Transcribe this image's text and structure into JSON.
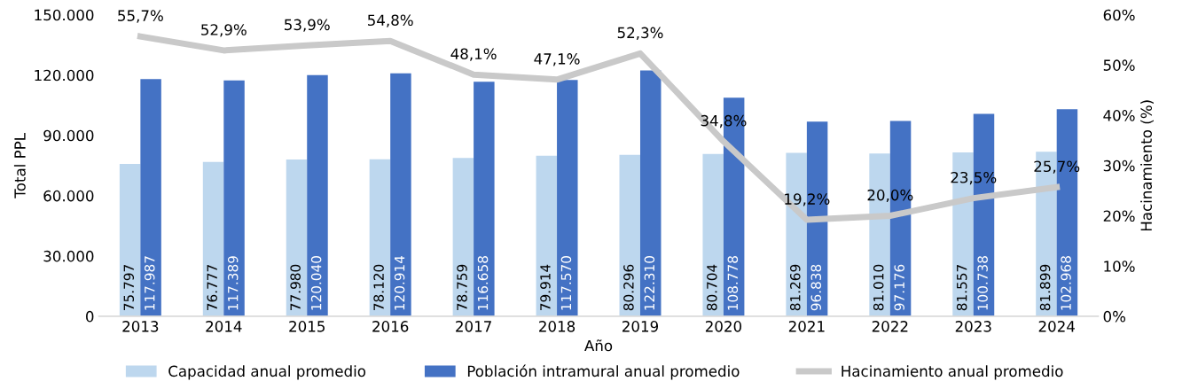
{
  "chart_data": {
    "type": "bar",
    "xlabel": "Año",
    "ylabel": "Total PPL",
    "y2label": "Hacinamiento (%)",
    "categories": [
      "2013",
      "2014",
      "2015",
      "2016",
      "2017",
      "2018",
      "2019",
      "2020",
      "2021",
      "2022",
      "2023",
      "2024"
    ],
    "series": [
      {
        "name": "Capacidad anual promedio",
        "color": "#bdd7ee",
        "values": [
          75797,
          76777,
          77980,
          78120,
          78759,
          79914,
          80296,
          80704,
          81269,
          81010,
          81557,
          81899
        ],
        "value_labels": [
          "75.797",
          "76.777",
          "77.980",
          "78.120",
          "78.759",
          "79.914",
          "80.296",
          "80.704",
          "81.269",
          "81.010",
          "81.557",
          "81.899"
        ]
      },
      {
        "name": "Población intramural anual promedio",
        "color": "#4472c4",
        "values": [
          117987,
          117389,
          120040,
          120914,
          116658,
          117570,
          122310,
          108778,
          96838,
          97176,
          100738,
          102968
        ],
        "value_labels": [
          "117.987",
          "117.389",
          "120.040",
          "120.914",
          "116.658",
          "117.570",
          "122.310",
          "108.778",
          "96.838",
          "97.176",
          "100.738",
          "102.968"
        ]
      },
      {
        "name": "Hacinamiento anual promedio",
        "type": "line",
        "axis": "y2",
        "color": "#c9c9c9",
        "values": [
          55.7,
          52.9,
          53.9,
          54.8,
          48.1,
          47.1,
          52.3,
          34.8,
          19.2,
          20.0,
          23.5,
          25.7
        ],
        "value_labels": [
          "55,7%",
          "52,9%",
          "53,9%",
          "54,8%",
          "48,1%",
          "47,1%",
          "52,3%",
          "34,8%",
          "19,2%",
          "20,0%",
          "23,5%",
          "25,7%"
        ]
      }
    ],
    "ylim": [
      0,
      150000
    ],
    "yticks": [
      {
        "value": 0,
        "label": "0"
      },
      {
        "value": 30000,
        "label": "30.000"
      },
      {
        "value": 60000,
        "label": "60.000"
      },
      {
        "value": 90000,
        "label": "90.000"
      },
      {
        "value": 120000,
        "label": "120.000"
      },
      {
        "value": 150000,
        "label": "150.000"
      }
    ],
    "y2lim": [
      0,
      60
    ],
    "y2ticks": [
      {
        "value": 0,
        "label": "0%"
      },
      {
        "value": 10,
        "label": "10%"
      },
      {
        "value": 20,
        "label": "20%"
      },
      {
        "value": 30,
        "label": "30%"
      },
      {
        "value": 40,
        "label": "40%"
      },
      {
        "value": 50,
        "label": "50%"
      },
      {
        "value": 60,
        "label": "60%"
      }
    ],
    "legend": "bottom",
    "grid": false,
    "marker": "none",
    "line_style": "solid"
  }
}
